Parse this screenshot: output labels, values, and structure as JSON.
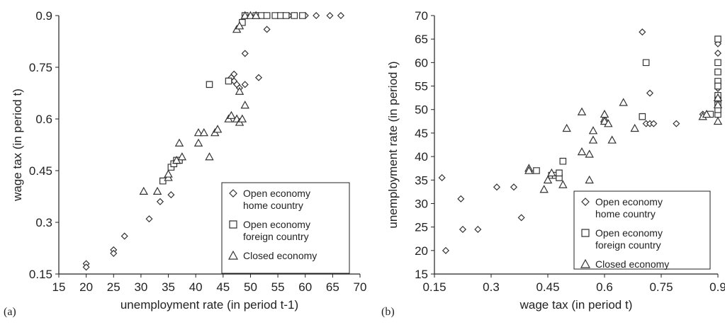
{
  "chart_data": [
    {
      "type": "scatter",
      "panel_label": "(a)",
      "xlabel": "unemployment rate (in period t-1)",
      "ylabel": "wage tax (in period t)",
      "xlim": [
        15,
        70
      ],
      "ylim": [
        0.15,
        0.9
      ],
      "xticks": [
        "15",
        "20",
        "25",
        "30",
        "35",
        "40",
        "45",
        "50",
        "55",
        "60",
        "65",
        "70"
      ],
      "yticks": [
        "0.15",
        "0.3",
        "0.45",
        "0.6",
        "0.75",
        "0.9"
      ],
      "legend_position": "bottom-right",
      "series": [
        {
          "name": "Open economy home country",
          "legend_lines": [
            "Open economy",
            "home country"
          ],
          "marker": "diamond",
          "points": [
            [
              20,
              0.18
            ],
            [
              20,
              0.17
            ],
            [
              25,
              0.22
            ],
            [
              25,
              0.21
            ],
            [
              27,
              0.26
            ],
            [
              31.5,
              0.31
            ],
            [
              33.5,
              0.36
            ],
            [
              35.5,
              0.38
            ],
            [
              46.5,
              0.72
            ],
            [
              47,
              0.71
            ],
            [
              47.5,
              0.7
            ],
            [
              48,
              0.69
            ],
            [
              49,
              0.79
            ],
            [
              49,
              0.7
            ],
            [
              51.5,
              0.72
            ],
            [
              53,
              0.86
            ],
            [
              53,
              0.9
            ],
            [
              55,
              0.9
            ],
            [
              56,
              0.9
            ],
            [
              57,
              0.9
            ],
            [
              58,
              0.9
            ],
            [
              60,
              0.9
            ],
            [
              62,
              0.9
            ],
            [
              64.5,
              0.9
            ],
            [
              66.5,
              0.9
            ],
            [
              47,
              0.73
            ]
          ]
        },
        {
          "name": "Open economy foreign country",
          "legend_lines": [
            "Open economy",
            "foreign country"
          ],
          "marker": "square",
          "points": [
            [
              34,
              0.42
            ],
            [
              35.5,
              0.46
            ],
            [
              36,
              0.47
            ],
            [
              36.5,
              0.48
            ],
            [
              37,
              0.48
            ],
            [
              42.5,
              0.7
            ],
            [
              46,
              0.71
            ],
            [
              48.5,
              0.88
            ],
            [
              49,
              0.9
            ],
            [
              51,
              0.9
            ],
            [
              52,
              0.9
            ],
            [
              53,
              0.9
            ],
            [
              54.5,
              0.9
            ],
            [
              55.5,
              0.9
            ],
            [
              56.5,
              0.9
            ],
            [
              58,
              0.9
            ],
            [
              59.5,
              0.9
            ]
          ]
        },
        {
          "name": "Closed economy",
          "legend_lines": [
            "Closed economy"
          ],
          "marker": "triangle",
          "points": [
            [
              30.5,
              0.39
            ],
            [
              33,
              0.39
            ],
            [
              35,
              0.43
            ],
            [
              35,
              0.44
            ],
            [
              36.5,
              0.48
            ],
            [
              37,
              0.53
            ],
            [
              37.5,
              0.49
            ],
            [
              40.5,
              0.53
            ],
            [
              40.5,
              0.56
            ],
            [
              41.5,
              0.56
            ],
            [
              42.5,
              0.49
            ],
            [
              43.5,
              0.56
            ],
            [
              44,
              0.57
            ],
            [
              46,
              0.6
            ],
            [
              46.5,
              0.61
            ],
            [
              47.5,
              0.6
            ],
            [
              48,
              0.59
            ],
            [
              48,
              0.68
            ],
            [
              48.5,
              0.6
            ],
            [
              49,
              0.64
            ],
            [
              47.5,
              0.86
            ],
            [
              48,
              0.87
            ],
            [
              49,
              0.9
            ],
            [
              50,
              0.9
            ],
            [
              51,
              0.9
            ]
          ]
        }
      ]
    },
    {
      "type": "scatter",
      "panel_label": "(b)",
      "xlabel": "wage tax (in period t)",
      "ylabel": "unemployment rate (in period t)",
      "xlim": [
        0.15,
        0.9
      ],
      "ylim": [
        15,
        70
      ],
      "xticks": [
        "0.15",
        "0.3",
        "0.45",
        "0.6",
        "0.75",
        "0.9"
      ],
      "yticks": [
        "15",
        "20",
        "25",
        "30",
        "35",
        "40",
        "45",
        "50",
        "55",
        "60",
        "65",
        "70"
      ],
      "legend_position": "bottom-right",
      "series": [
        {
          "name": "Open economy home country",
          "legend_lines": [
            "Open economy",
            "home country"
          ],
          "marker": "diamond",
          "points": [
            [
              0.17,
              35.5
            ],
            [
              0.18,
              20
            ],
            [
              0.22,
              31
            ],
            [
              0.225,
              24.5
            ],
            [
              0.265,
              24.5
            ],
            [
              0.315,
              33.5
            ],
            [
              0.36,
              33.5
            ],
            [
              0.38,
              27
            ],
            [
              0.7,
              66.5
            ],
            [
              0.72,
              53.5
            ],
            [
              0.71,
              47
            ],
            [
              0.72,
              47
            ],
            [
              0.73,
              47
            ],
            [
              0.79,
              47
            ],
            [
              0.86,
              49
            ],
            [
              0.9,
              64
            ],
            [
              0.9,
              62
            ],
            [
              0.9,
              58
            ],
            [
              0.9,
              56
            ],
            [
              0.9,
              54.5
            ],
            [
              0.9,
              53
            ],
            [
              0.9,
              51
            ]
          ]
        },
        {
          "name": "Open economy foreign country",
          "legend_lines": [
            "Open economy",
            "foreign country"
          ],
          "marker": "square",
          "points": [
            [
              0.42,
              37
            ],
            [
              0.46,
              36
            ],
            [
              0.47,
              36
            ],
            [
              0.48,
              35.5
            ],
            [
              0.48,
              36.5
            ],
            [
              0.49,
              39
            ],
            [
              0.7,
              48.5
            ],
            [
              0.71,
              60
            ],
            [
              0.88,
              49
            ],
            [
              0.9,
              65
            ],
            [
              0.9,
              60
            ],
            [
              0.9,
              58
            ],
            [
              0.9,
              56
            ],
            [
              0.9,
              55
            ],
            [
              0.9,
              53
            ],
            [
              0.9,
              52
            ],
            [
              0.9,
              51
            ],
            [
              0.9,
              49
            ],
            [
              0.9,
              50
            ]
          ]
        },
        {
          "name": "Closed economy",
          "legend_lines": [
            "Closed economy"
          ],
          "marker": "triangle",
          "points": [
            [
              0.4,
              37.5
            ],
            [
              0.4,
              37
            ],
            [
              0.44,
              33
            ],
            [
              0.45,
              35
            ],
            [
              0.46,
              36.5
            ],
            [
              0.49,
              34
            ],
            [
              0.5,
              46
            ],
            [
              0.54,
              49.5
            ],
            [
              0.54,
              41
            ],
            [
              0.56,
              35
            ],
            [
              0.56,
              40.5
            ],
            [
              0.57,
              43.5
            ],
            [
              0.57,
              45.5
            ],
            [
              0.6,
              48
            ],
            [
              0.6,
              49
            ],
            [
              0.6,
              47.5
            ],
            [
              0.61,
              47
            ],
            [
              0.62,
              43.5
            ],
            [
              0.65,
              51.5
            ],
            [
              0.68,
              46
            ],
            [
              0.86,
              48.5
            ],
            [
              0.87,
              49
            ],
            [
              0.9,
              47.5
            ],
            [
              0.9,
              51
            ],
            [
              0.9,
              52.5
            ]
          ]
        }
      ]
    }
  ]
}
